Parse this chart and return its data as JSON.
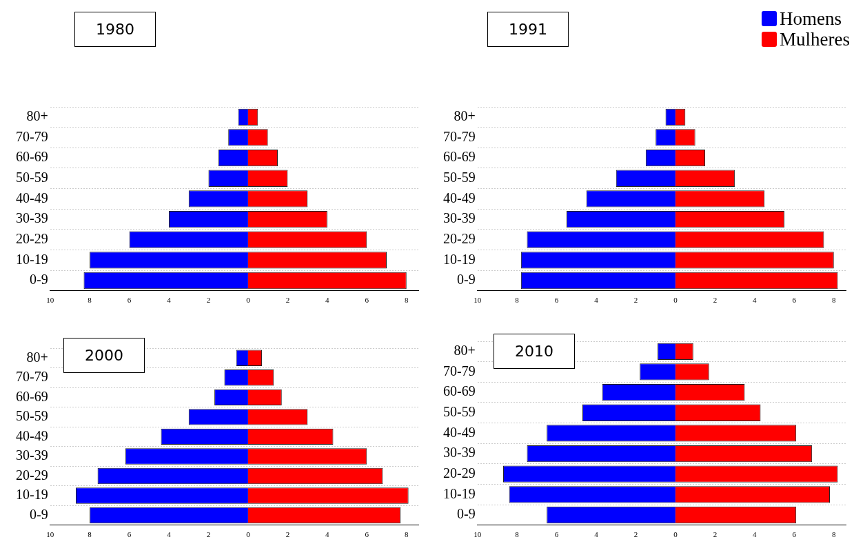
{
  "chart_data": [
    {
      "type": "bar",
      "title": "1980",
      "orientation": "horizontal",
      "stacked": true,
      "grid": "y",
      "categories": [
        "80+",
        "70-79",
        "60-69",
        "50-59",
        "40-49",
        "30-39",
        "20-29",
        "10-19",
        "0-9"
      ],
      "xlim": [
        -10,
        8.6
      ],
      "xticks": [
        {
          "value": -10,
          "label": "10"
        },
        {
          "value": -8,
          "label": "8"
        },
        {
          "value": -6,
          "label": "6"
        },
        {
          "value": -4,
          "label": "4"
        },
        {
          "value": -2,
          "label": "2"
        },
        0,
        2,
        4,
        6,
        8
      ],
      "series": [
        {
          "color": "#0000ff",
          "values": [
            -0.5,
            -1.0,
            -1.5,
            -2.0,
            -3.0,
            -4.0,
            -6.0,
            -8.0,
            -8.3
          ]
        },
        {
          "color": "#ff0000",
          "values": [
            0.5,
            1.0,
            1.5,
            2.0,
            3.0,
            4.0,
            6.0,
            7.0,
            8.0
          ]
        }
      ]
    },
    {
      "type": "bar",
      "title": "1991",
      "orientation": "horizontal",
      "stacked": true,
      "grid": "y",
      "legend": "top right",
      "categories": [
        "80+",
        "70-79",
        "60-69",
        "50-59",
        "40-49",
        "30-39",
        "20-29",
        "10-19",
        "0-9"
      ],
      "xlim": [
        -10,
        8.6
      ],
      "xticks": [
        {
          "value": -10,
          "label": "10"
        },
        {
          "value": -8,
          "label": "8"
        },
        {
          "value": -6,
          "label": "6"
        },
        {
          "value": -4,
          "label": "4"
        },
        {
          "value": -2,
          "label": "2"
        },
        0,
        2,
        4,
        6,
        8
      ],
      "series": [
        {
          "name": "Homens",
          "color": "#0000ff",
          "values": [
            -0.5,
            -1.0,
            -1.5,
            -3.0,
            -4.5,
            -5.5,
            -7.5,
            -7.8,
            -7.8
          ]
        },
        {
          "name": "Mulheres",
          "color": "#ff0000",
          "values": [
            0.5,
            1.0,
            1.5,
            3.0,
            4.5,
            5.5,
            7.5,
            8.0,
            8.2
          ]
        }
      ]
    },
    {
      "type": "bar",
      "title": "2000",
      "orientation": "horizontal",
      "stacked": true,
      "grid": "y",
      "categories": [
        "80+",
        "70-79",
        "60-69",
        "50-59",
        "40-49",
        "30-39",
        "20-29",
        "10-19",
        "0-9"
      ],
      "xlim": [
        -10,
        8.6
      ],
      "xticks": [
        {
          "value": -10,
          "label": "10"
        },
        {
          "value": -8,
          "label": "8"
        },
        {
          "value": -6,
          "label": "6"
        },
        {
          "value": -4,
          "label": "4"
        },
        {
          "value": -2,
          "label": "2"
        },
        0,
        2,
        4,
        6,
        8
      ],
      "series": [
        {
          "color": "#0000ff",
          "values": [
            -0.6,
            -1.2,
            -1.7,
            -3.0,
            -4.4,
            -6.2,
            -7.6,
            -8.7,
            -8.0
          ]
        },
        {
          "color": "#ff0000",
          "values": [
            0.7,
            1.3,
            1.7,
            3.0,
            4.3,
            6.0,
            6.8,
            8.1,
            7.7
          ]
        }
      ]
    },
    {
      "type": "bar",
      "title": "2010",
      "orientation": "horizontal",
      "stacked": true,
      "grid": "y",
      "categories": [
        "80+",
        "70-79",
        "60-69",
        "50-59",
        "40-49",
        "30-39",
        "20-29",
        "10-19",
        "0-9"
      ],
      "xlim": [
        -10,
        8.6
      ],
      "xticks": [
        {
          "value": -10,
          "label": "10"
        },
        {
          "value": -8,
          "label": "8"
        },
        {
          "value": -6,
          "label": "6"
        },
        {
          "value": -4,
          "label": "4"
        },
        {
          "value": -2,
          "label": "2"
        },
        0,
        2,
        4,
        6,
        8
      ],
      "series": [
        {
          "color": "#0000ff",
          "values": [
            -0.9,
            -1.8,
            -3.7,
            -4.7,
            -6.5,
            -7.5,
            -8.7,
            -8.4,
            -6.5
          ]
        },
        {
          "color": "#ff0000",
          "values": [
            0.9,
            1.7,
            3.5,
            4.3,
            6.1,
            6.9,
            8.2,
            7.8,
            6.1
          ]
        }
      ]
    }
  ]
}
